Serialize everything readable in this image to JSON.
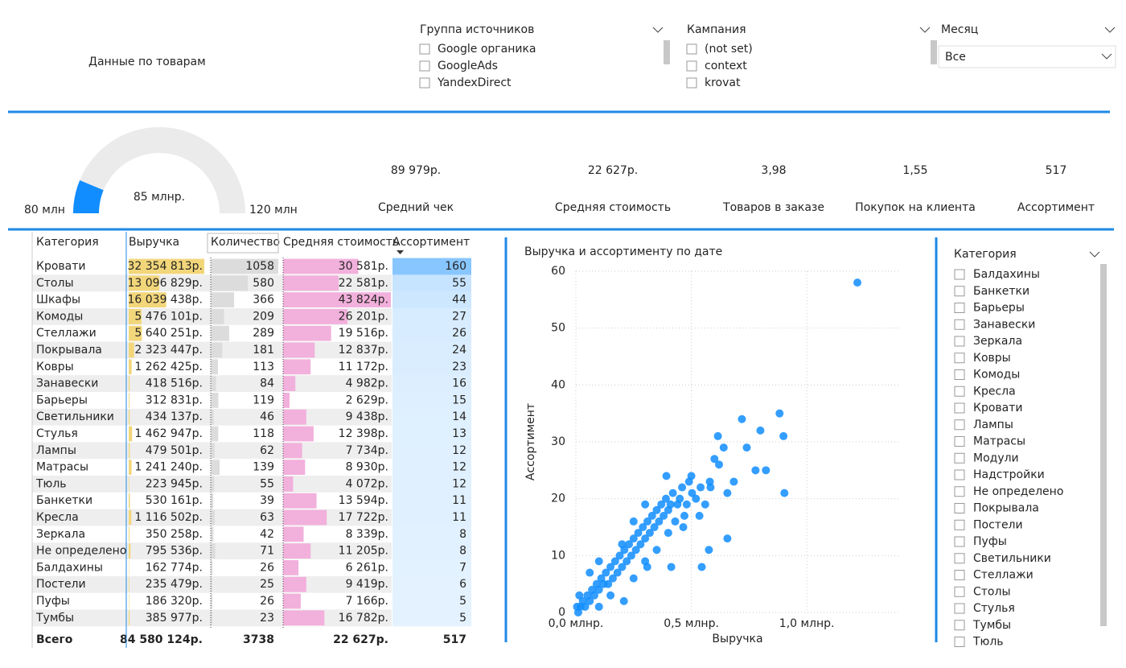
{
  "header": {
    "title": "Данные по товарам"
  },
  "filters": [
    {
      "title": "Группа источников",
      "items": [
        "Google органика",
        "GoogleAds",
        "YandexDirect"
      ]
    },
    {
      "title": "Кампания",
      "items": [
        "(not set)",
        "context",
        "krovat"
      ]
    },
    {
      "title": "Месяц",
      "value": "Все"
    }
  ],
  "gauge": {
    "value": 85,
    "value_label": "85 млнр.",
    "min": 80,
    "min_label": "80 млн",
    "max": 120,
    "max_label": "120 млн"
  },
  "kpis": [
    {
      "value": "89 979р.",
      "label": "Средний чек"
    },
    {
      "value": "22 627р.",
      "label": "Средняя стоимость"
    },
    {
      "value": "3,98",
      "label": "Товаров в заказе"
    },
    {
      "value": "1,55",
      "label": "Покупок на клиента"
    },
    {
      "value": "517",
      "label": "Ассортимент"
    }
  ],
  "table": {
    "columns": [
      "Категория",
      "Выручка",
      "Количество",
      "Средняя стоимость",
      "Ассортимент"
    ],
    "rows": [
      [
        "Кровати",
        "32 354 813р.",
        "1058",
        "30 581р.",
        "160"
      ],
      [
        "Столы",
        "13 096 829р.",
        "580",
        "22 581р.",
        "55"
      ],
      [
        "Шкафы",
        "16 039 438р.",
        "366",
        "43 824р.",
        "44"
      ],
      [
        "Комоды",
        "5 476 101р.",
        "209",
        "26 201р.",
        "27"
      ],
      [
        "Стеллажи",
        "5 640 251р.",
        "289",
        "19 516р.",
        "26"
      ],
      [
        "Покрывала",
        "2 323 447р.",
        "181",
        "12 837р.",
        "24"
      ],
      [
        "Ковры",
        "1 262 425р.",
        "113",
        "11 172р.",
        "23"
      ],
      [
        "Занавески",
        "418 516р.",
        "84",
        "4 982р.",
        "16"
      ],
      [
        "Барьеры",
        "312 831р.",
        "119",
        "2 629р.",
        "15"
      ],
      [
        "Светильники",
        "434 137р.",
        "46",
        "9 438р.",
        "14"
      ],
      [
        "Стулья",
        "1 462 947р.",
        "118",
        "12 398р.",
        "13"
      ],
      [
        "Лампы",
        "479 501р.",
        "62",
        "7 734р.",
        "12"
      ],
      [
        "Матрасы",
        "1 241 240р.",
        "139",
        "8 930р.",
        "12"
      ],
      [
        "Тюль",
        "223 945р.",
        "55",
        "4 072р.",
        "12"
      ],
      [
        "Банкетки",
        "530 161р.",
        "39",
        "13 594р.",
        "11"
      ],
      [
        "Кресла",
        "1 116 502р.",
        "63",
        "17 722р.",
        "11"
      ],
      [
        "Зеркала",
        "350 258р.",
        "42",
        "8 339р.",
        "8"
      ],
      [
        "Не определено",
        "795 536р.",
        "71",
        "11 205р.",
        "8"
      ],
      [
        "Балдахины",
        "162 774р.",
        "26",
        "6 261р.",
        "7"
      ],
      [
        "Постели",
        "235 479р.",
        "25",
        "9 419р.",
        "6"
      ],
      [
        "Пуфы",
        "186 320р.",
        "26",
        "7 166р.",
        "5"
      ],
      [
        "Тумбы",
        "385 977р.",
        "23",
        "16 782р.",
        "5"
      ]
    ],
    "total": [
      "Всего",
      "84 580 124р.",
      "3738",
      "22 627р.",
      "517"
    ]
  },
  "category_slicer": {
    "title": "Категория",
    "items": [
      "Балдахины",
      "Банкетки",
      "Барьеры",
      "Занавески",
      "Зеркала",
      "Ковры",
      "Комоды",
      "Кресла",
      "Кровати",
      "Лампы",
      "Матрасы",
      "Модули",
      "Надстройки",
      "Не определено",
      "Покрывала",
      "Постели",
      "Пуфы",
      "Светильники",
      "Стеллажи",
      "Столы",
      "Стулья",
      "Тумбы",
      "Тюль"
    ]
  },
  "chart_data": {
    "type": "scatter",
    "title": "Выручка и ассортименту по дате",
    "x_label": "Выручка",
    "y_label": "Ассортимент",
    "color": "#118dff",
    "xlim": [
      0,
      1400000
    ],
    "ylim": [
      0,
      60
    ],
    "xticks": [
      {
        "value": 0,
        "label": "0,0 млнр."
      },
      {
        "value": 500000,
        "label": "0,5 млнр."
      },
      {
        "value": 1000000,
        "label": "1,0 млнр."
      }
    ],
    "yticks": [
      0,
      10,
      20,
      30,
      40,
      50,
      60
    ],
    "grid": true,
    "x": [
      1219000,
      882000,
      719000,
      899000,
      903000,
      684000,
      615000,
      799000,
      740000,
      778000,
      823000,
      656000,
      576000,
      656000,
      545000,
      413000,
      503000,
      583000,
      535000,
      465000,
      392000,
      500000,
      309000,
      208000,
      20000,
      30000,
      40000,
      50000,
      60000,
      70000,
      80000,
      90000,
      100000,
      110000,
      120000,
      130000,
      140000,
      150000,
      160000,
      170000,
      180000,
      190000,
      200000,
      210000,
      220000,
      230000,
      240000,
      250000,
      260000,
      270000,
      280000,
      290000,
      300000,
      310000,
      320000,
      330000,
      340000,
      350000,
      360000,
      370000,
      380000,
      390000,
      400000,
      410000,
      420000,
      430000,
      440000,
      450000,
      460000,
      470000,
      480000,
      490000,
      520000,
      540000,
      560000,
      580000,
      600000,
      620000,
      640000,
      60000,
      100000,
      150000,
      200000,
      250000,
      300000,
      350000,
      400000,
      250000,
      300000,
      100000,
      10000,
      5000,
      15000
    ],
    "values": [
      58,
      35,
      34,
      31,
      21,
      23,
      31,
      32,
      29,
      25,
      25,
      21,
      11,
      13,
      8,
      8,
      21,
      22,
      17,
      15,
      24,
      24,
      8,
      2,
      1,
      2,
      1,
      3,
      2,
      4,
      3,
      5,
      4,
      6,
      5,
      7,
      5,
      8,
      6,
      9,
      7,
      10,
      8,
      11,
      9,
      12,
      10,
      13,
      11,
      14,
      12,
      15,
      13,
      16,
      14,
      17,
      15,
      18,
      16,
      19,
      17,
      20,
      18,
      19,
      21,
      16,
      19,
      20,
      22,
      17,
      19,
      23,
      20,
      22,
      19,
      23,
      27,
      26,
      29,
      7,
      9,
      3,
      12,
      6,
      9,
      11,
      14,
      16,
      19,
      1,
      0,
      1,
      3
    ]
  }
}
